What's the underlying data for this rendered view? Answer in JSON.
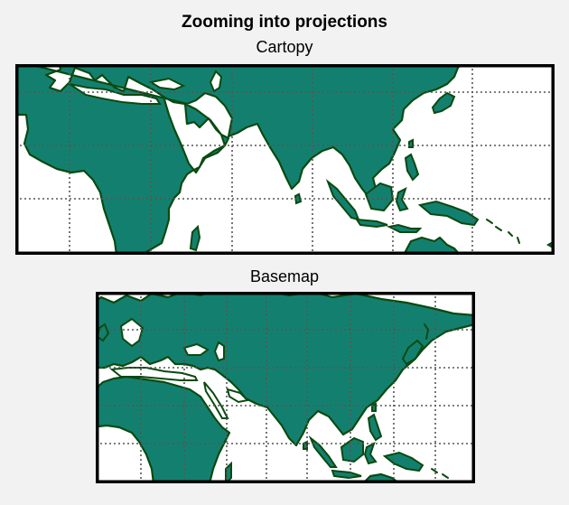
{
  "figure": {
    "title": "Zooming into projections"
  },
  "panels": [
    {
      "title": "Cartopy",
      "projection": "cartopy"
    },
    {
      "title": "Basemap",
      "projection": "basemap"
    }
  ],
  "colors": {
    "land": "#13806f",
    "coastline": "#0a4a10",
    "ocean": "#ffffff",
    "gridline": "#555555",
    "frame": "#000000",
    "figure_background": "#f2f2f2"
  }
}
